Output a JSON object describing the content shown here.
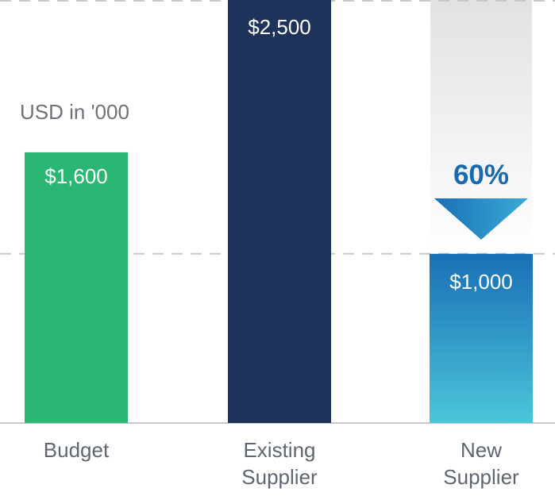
{
  "chart_data": {
    "type": "bar",
    "unit_label": "USD in '000",
    "categories": [
      "Budget",
      "Existing Supplier",
      "New Supplier"
    ],
    "values": [
      1600,
      2500,
      1000
    ],
    "value_labels": [
      "$1,600",
      "$2,500",
      "$1,000"
    ],
    "category_lines": [
      [
        "Budget"
      ],
      [
        "Existing",
        "Supplier"
      ],
      [
        "New",
        "Supplier"
      ]
    ],
    "ylim": [
      0,
      2500
    ],
    "reference_lines": [
      2500,
      1000
    ],
    "reduction": {
      "label": "60%",
      "from": 2500,
      "to": 1000,
      "category": "New Supplier"
    },
    "grid": false,
    "legend": "none"
  },
  "colors": {
    "budget": "#2ab673",
    "existing": "#1d3359",
    "new_top": "#1a6fb5",
    "new_bottom": "#4bc5da",
    "arrow_top": "#1a6fb5",
    "arrow_bottom": "#3aaad6",
    "percent_text": "#1a6aaf",
    "value_text": "#ffffff",
    "category_text": "#5f6670",
    "unit_text": "#6d7278",
    "dashed_line": "#c7c7c7",
    "baseline": "#c9c9c9",
    "ghost_top": "#e2e2e2",
    "ghost_bottom": "#ffffff"
  }
}
